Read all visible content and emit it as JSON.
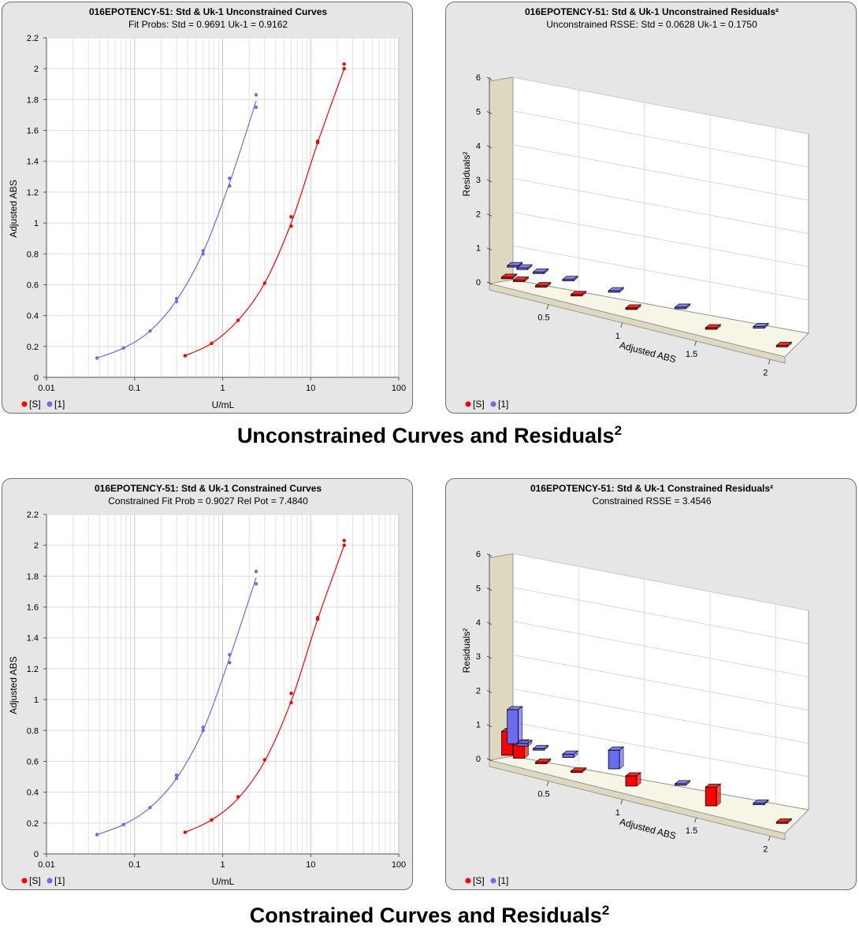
{
  "captions": {
    "top": {
      "text": "Unconstrained Curves and Residuals",
      "sup": "2"
    },
    "bottom": {
      "text": "Constrained Curves and Residuals",
      "sup": "2"
    }
  },
  "colors": {
    "standard": "#ff0000",
    "unknown": "#6b6bf0",
    "panel_bg": "#e6e6e6",
    "wall": "#ddd8c0"
  },
  "chart_data": [
    {
      "id": "c1",
      "type": "scatter",
      "title": "016EPOTENCY-51: Std & Uk-1  Unconstrained Curves",
      "subtitle": "Fit Probs: Std = 0.9691  Uk-1 = 0.9162",
      "xlabel": "U/mL",
      "ylabel": "Adjusted ABS",
      "xscale": "log",
      "xlim": [
        0.01,
        100
      ],
      "ylim": [
        0,
        2.2
      ],
      "xticks": [
        "0.01",
        "0.1",
        "1",
        "10",
        "100"
      ],
      "yticks": [
        "0",
        "0.2",
        "0.4",
        "0.6",
        "0.8",
        "1",
        "1.2",
        "1.4",
        "1.6",
        "1.8",
        "2",
        "2.2"
      ],
      "legend": [
        "[S]",
        "[1]"
      ],
      "grid": true,
      "series": [
        {
          "name": "[S]",
          "color": "#ff0000",
          "points": [
            [
              0.375,
              0.14
            ],
            [
              0.75,
              0.22
            ],
            [
              1.5,
              0.37
            ],
            [
              3,
              0.61
            ],
            [
              6,
              0.98
            ],
            [
              6,
              1.04
            ],
            [
              12,
              1.52
            ],
            [
              12,
              1.53
            ],
            [
              24,
              2.0
            ],
            [
              24,
              2.03
            ]
          ],
          "curve": [
            [
              0.375,
              0.14
            ],
            [
              0.75,
              0.22
            ],
            [
              1.5,
              0.37
            ],
            [
              3,
              0.61
            ],
            [
              6,
              1.0
            ],
            [
              12,
              1.52
            ],
            [
              24,
              2.0
            ]
          ]
        },
        {
          "name": "[1]",
          "color": "#6b6bf0",
          "points": [
            [
              0.0375,
              0.125
            ],
            [
              0.075,
              0.19
            ],
            [
              0.15,
              0.3
            ],
            [
              0.3,
              0.49
            ],
            [
              0.3,
              0.51
            ],
            [
              0.6,
              0.8
            ],
            [
              0.6,
              0.82
            ],
            [
              1.2,
              1.24
            ],
            [
              1.2,
              1.29
            ],
            [
              2.4,
              1.75
            ],
            [
              2.4,
              1.83
            ]
          ],
          "curve": [
            [
              0.0375,
              0.125
            ],
            [
              0.075,
              0.19
            ],
            [
              0.15,
              0.3
            ],
            [
              0.3,
              0.5
            ],
            [
              0.6,
              0.81
            ],
            [
              1.2,
              1.26
            ],
            [
              2.4,
              1.79
            ]
          ]
        }
      ]
    },
    {
      "id": "r1",
      "type": "bar",
      "title": "016EPOTENCY-51: Std & Uk-1  Unconstrained Residuals²",
      "subtitle": "Unconstrained RSSE: Std = 0.0628  Uk-1 = 0.1750",
      "xlabel": "Adjusted ABS",
      "ylabel": "Residuals²",
      "zlim": [
        0,
        6
      ],
      "zticks": [
        "0",
        "1",
        "2",
        "3",
        "4",
        "5",
        "6"
      ],
      "xticks": [
        "0.5",
        "1",
        "1.5",
        "2"
      ],
      "legend": [
        "[S]",
        "[1]"
      ],
      "series": [
        {
          "name": "[S]",
          "color": "#ff0000",
          "x": [
            0.14,
            0.22,
            0.37,
            0.61,
            0.98,
            1.52,
            2.0
          ],
          "values": [
            0.02,
            0.02,
            0.01,
            0.01,
            0.01,
            0.01,
            0.01
          ]
        },
        {
          "name": "[1]",
          "color": "#6b6bf0",
          "x": [
            0.125,
            0.19,
            0.3,
            0.5,
            0.81,
            1.26,
            1.79
          ],
          "values": [
            0.03,
            0.05,
            0.04,
            0.01,
            0.01,
            0.01,
            0.01
          ]
        }
      ]
    },
    {
      "id": "c2",
      "type": "scatter",
      "title": "016EPOTENCY-51: Std & Uk-1 Constrained Curves",
      "subtitle": "Constrained Fit Prob = 0.9027  Rel Pot = 7.4840",
      "xlabel": "U/mL",
      "ylabel": "Adjusted ABS",
      "xscale": "log",
      "xlim": [
        0.01,
        100
      ],
      "ylim": [
        0,
        2.2
      ],
      "xticks": [
        "0.01",
        "0.1",
        "1",
        "10",
        "100"
      ],
      "yticks": [
        "0",
        "0.2",
        "0.4",
        "0.6",
        "0.8",
        "1",
        "1.2",
        "1.4",
        "1.6",
        "1.8",
        "2",
        "2.2"
      ],
      "legend": [
        "[S]",
        "[1]"
      ],
      "grid": true,
      "series": [
        {
          "name": "[S]",
          "color": "#ff0000",
          "points": [
            [
              0.375,
              0.14
            ],
            [
              0.75,
              0.22
            ],
            [
              1.5,
              0.37
            ],
            [
              3,
              0.61
            ],
            [
              6,
              0.98
            ],
            [
              6,
              1.04
            ],
            [
              12,
              1.52
            ],
            [
              12,
              1.53
            ],
            [
              24,
              2.0
            ],
            [
              24,
              2.03
            ]
          ],
          "curve": [
            [
              0.375,
              0.14
            ],
            [
              0.75,
              0.22
            ],
            [
              1.5,
              0.36
            ],
            [
              3,
              0.6
            ],
            [
              6,
              0.99
            ],
            [
              12,
              1.52
            ],
            [
              24,
              2.0
            ]
          ]
        },
        {
          "name": "[1]",
          "color": "#6b6bf0",
          "points": [
            [
              0.0375,
              0.125
            ],
            [
              0.075,
              0.19
            ],
            [
              0.15,
              0.3
            ],
            [
              0.3,
              0.49
            ],
            [
              0.3,
              0.51
            ],
            [
              0.6,
              0.8
            ],
            [
              0.6,
              0.82
            ],
            [
              1.2,
              1.24
            ],
            [
              1.2,
              1.29
            ],
            [
              2.4,
              1.75
            ],
            [
              2.4,
              1.83
            ]
          ],
          "curve": [
            [
              0.0375,
              0.125
            ],
            [
              0.075,
              0.19
            ],
            [
              0.15,
              0.3
            ],
            [
              0.3,
              0.49
            ],
            [
              0.6,
              0.8
            ],
            [
              1.2,
              1.27
            ],
            [
              2.4,
              1.79
            ]
          ]
        }
      ]
    },
    {
      "id": "r2",
      "type": "bar",
      "title": "016EPOTENCY-51: Std & Uk-1  Constrained Residuals²",
      "subtitle": "Constrained RSSE = 3.4546",
      "xlabel": "Adjusted ABS",
      "ylabel": "Residuals²",
      "zlim": [
        0,
        6
      ],
      "zticks": [
        "0",
        "1",
        "2",
        "3",
        "4",
        "5",
        "6"
      ],
      "xticks": [
        "0.5",
        "1",
        "1.5",
        "2"
      ],
      "legend": [
        "[S]",
        "[1]"
      ],
      "series": [
        {
          "name": "[S]",
          "color": "#ff0000",
          "x": [
            0.14,
            0.22,
            0.37,
            0.61,
            0.98,
            1.52,
            2.0
          ],
          "values": [
            0.7,
            0.45,
            0.02,
            0.02,
            0.3,
            0.55,
            0.02
          ]
        },
        {
          "name": "[1]",
          "color": "#6b6bf0",
          "x": [
            0.125,
            0.19,
            0.3,
            0.5,
            0.81,
            1.26,
            1.79
          ],
          "values": [
            1.0,
            0.08,
            0.04,
            0.1,
            0.55,
            0.04,
            0.02
          ]
        }
      ]
    }
  ]
}
